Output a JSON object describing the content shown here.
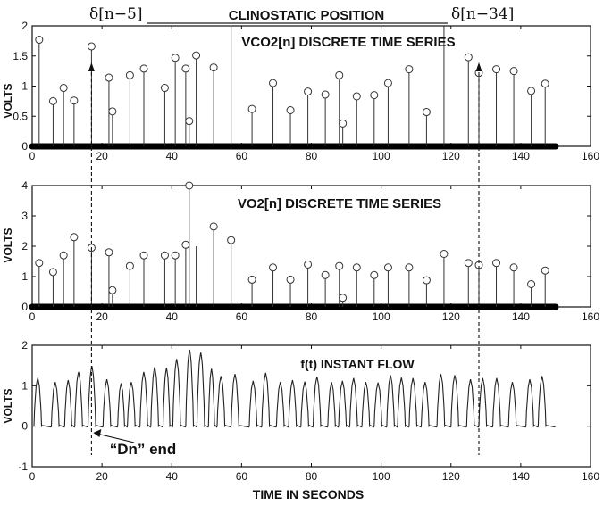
{
  "header": {
    "title": "CLINOSTATIC  POSITION",
    "delta_left": "δ[n−5]",
    "delta_right": "δ[n−34]"
  },
  "annotation": {
    "dn_label": "“Dn” end"
  },
  "xlabel": "TIME IN SECONDS",
  "chart_data": [
    {
      "type": "stem",
      "title": "VCO2[n]  DISCRETE TIME SERIES",
      "ylabel": "VOLTS",
      "xlim": [
        0,
        160
      ],
      "ylim": [
        0,
        2
      ],
      "xticks": [
        "0",
        "20",
        "40",
        "60",
        "80",
        "100",
        "120",
        "140",
        "160"
      ],
      "yticks": [
        "0",
        "0.5",
        "1",
        "1.5",
        "2"
      ],
      "x": [
        2,
        6,
        9,
        12,
        17,
        22,
        23,
        28,
        32,
        38,
        41,
        44,
        45,
        47,
        52,
        57,
        63,
        69,
        74,
        79,
        84,
        88,
        89,
        93,
        98,
        102,
        108,
        113,
        118,
        125,
        128,
        133,
        138,
        143,
        147
      ],
      "y": [
        1.77,
        0.75,
        0.97,
        0.76,
        1.66,
        1.14,
        0.58,
        1.18,
        1.29,
        0.97,
        1.47,
        1.29,
        0.42,
        1.51,
        1.31,
        2.03,
        0.62,
        1.05,
        0.6,
        0.91,
        0.86,
        1.18,
        0.38,
        0.83,
        0.85,
        1.05,
        1.28,
        0.57,
        2.03,
        1.48,
        1.22,
        1.28,
        1.25,
        0.92,
        1.04
      ],
      "markers": [
        true,
        true,
        true,
        true,
        true,
        true,
        true,
        true,
        true,
        true,
        true,
        true,
        true,
        true,
        true,
        false,
        true,
        true,
        true,
        true,
        true,
        true,
        true,
        true,
        true,
        true,
        true,
        true,
        false,
        true,
        true,
        true,
        true,
        true,
        true
      ]
    },
    {
      "type": "stem",
      "title": "VO2[n]  DISCRETE TIME SERIES",
      "ylabel": "VOLTS",
      "xlim": [
        0,
        160
      ],
      "ylim": [
        0,
        4
      ],
      "xticks": [
        "0",
        "20",
        "40",
        "60",
        "80",
        "100",
        "120",
        "140",
        "160"
      ],
      "yticks": [
        "0",
        "1",
        "2",
        "3",
        "4"
      ],
      "x": [
        2,
        6,
        9,
        12,
        17,
        22,
        23,
        28,
        32,
        38,
        41,
        44,
        45,
        47,
        52,
        57,
        63,
        69,
        74,
        79,
        84,
        88,
        89,
        93,
        98,
        102,
        108,
        113,
        118,
        125,
        128,
        133,
        138,
        143,
        147
      ],
      "y": [
        1.45,
        1.15,
        1.7,
        2.3,
        1.95,
        1.8,
        0.55,
        1.35,
        1.7,
        1.7,
        1.7,
        2.05,
        4.0,
        2.0,
        2.65,
        2.2,
        0.9,
        1.3,
        0.9,
        1.4,
        1.05,
        1.35,
        0.3,
        1.3,
        1.05,
        1.3,
        1.3,
        0.88,
        1.75,
        1.45,
        1.38,
        1.45,
        1.3,
        0.75,
        1.2
      ],
      "markers": [
        true,
        true,
        true,
        true,
        true,
        true,
        true,
        true,
        true,
        true,
        true,
        true,
        true,
        false,
        true,
        true,
        true,
        true,
        true,
        true,
        true,
        true,
        true,
        true,
        true,
        true,
        true,
        true,
        true,
        true,
        true,
        true,
        true,
        true,
        true
      ]
    },
    {
      "type": "line",
      "title": "f(t) INSTANT FLOW",
      "ylabel": "VOLTS",
      "xlim": [
        0,
        160
      ],
      "ylim": [
        -1,
        2
      ],
      "xticks": [
        "0",
        "20",
        "40",
        "60",
        "80",
        "100",
        "120",
        "140",
        "160"
      ],
      "yticks": [
        "-1",
        "0",
        "1",
        "2"
      ],
      "breath_onsets": [
        0.5,
        5.5,
        9.3,
        12.2,
        16.0,
        20.3,
        24.5,
        27.3,
        30.9,
        34.0,
        37.5,
        40.3,
        44.0,
        47.2,
        50.5,
        53.0,
        57.0,
        62.2,
        65.8,
        70.0,
        73.5,
        77.0,
        80.5,
        84.7,
        87.8,
        91.0,
        94.5,
        98.0,
        101.6,
        104.7,
        108.0,
        111.5,
        116.0,
        120.0,
        124.5,
        128.0,
        132.0,
        136.5,
        141.5,
        145.0
      ],
      "breath_peaks": [
        1.15,
        1.05,
        1.1,
        1.3,
        1.45,
        1.12,
        1.02,
        1.05,
        1.3,
        1.42,
        1.4,
        1.62,
        1.85,
        1.78,
        1.38,
        1.2,
        1.25,
        1.08,
        1.28,
        1.05,
        1.1,
        1.06,
        1.18,
        1.05,
        1.08,
        1.15,
        1.05,
        1.04,
        1.22,
        1.16,
        1.15,
        1.05,
        1.25,
        1.22,
        1.12,
        1.15,
        1.15,
        1.05,
        1.12,
        1.2
      ],
      "end_x": 150
    }
  ],
  "markers_overlay": {
    "left_dashed_x": 17,
    "right_dashed_x": 128
  }
}
